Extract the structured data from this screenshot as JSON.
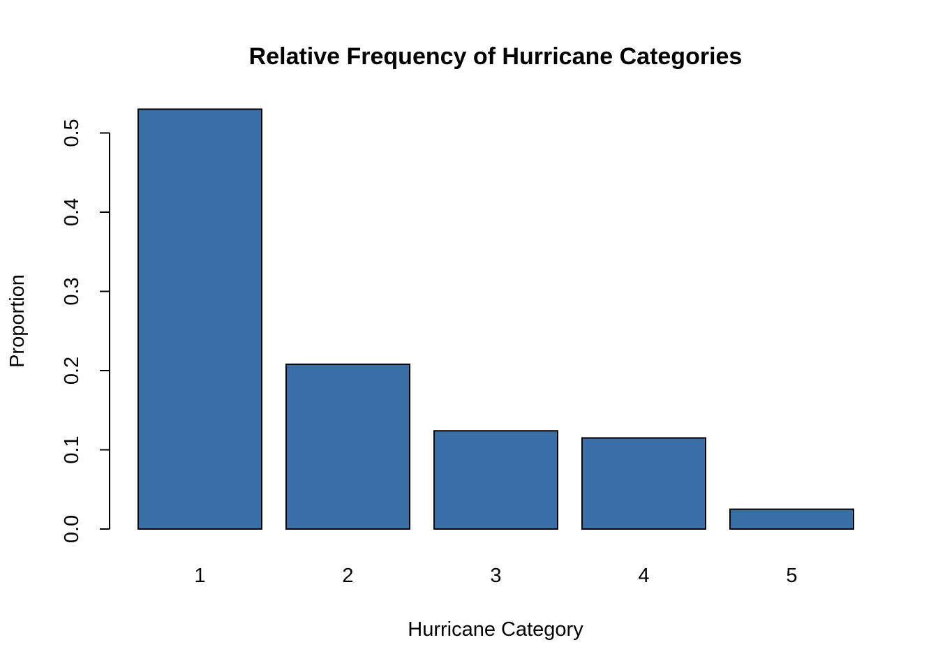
{
  "chart_data": {
    "type": "bar",
    "title": "Relative Frequency of Hurricane Categories",
    "xlabel": "Hurricane Category",
    "ylabel": "Proportion",
    "categories": [
      "1",
      "2",
      "3",
      "4",
      "5"
    ],
    "values": [
      0.53,
      0.208,
      0.124,
      0.115,
      0.025
    ],
    "ylim": [
      0,
      0.5
    ],
    "yticks": [
      0.0,
      0.1,
      0.2,
      0.3,
      0.4,
      0.5
    ],
    "ytick_labels": [
      "0.0",
      "0.1",
      "0.2",
      "0.3",
      "0.4",
      "0.5"
    ],
    "bar_color": "#3A6EA7",
    "grid": false,
    "legend": "none"
  }
}
